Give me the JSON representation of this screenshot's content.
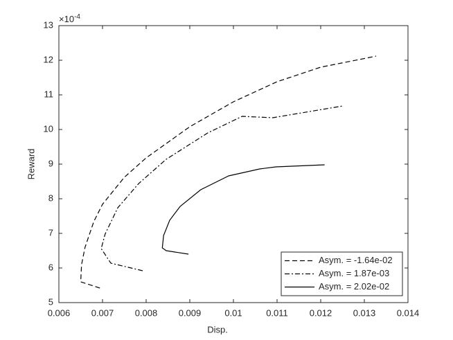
{
  "chart_data": {
    "type": "line",
    "x_label": "Disp.",
    "y_label": "Reward",
    "y_multiplier": {
      "base": "×10",
      "exponent": "-4"
    },
    "xlim": [
      0.006,
      0.014
    ],
    "xticks": [
      0.006,
      0.007,
      0.008,
      0.009,
      0.01,
      0.011,
      0.012,
      0.013,
      0.014
    ],
    "ylim": [
      5,
      13
    ],
    "yticks": [
      5,
      6,
      7,
      8,
      9,
      10,
      11,
      12,
      13
    ],
    "grid": false,
    "legend": "lower right",
    "series": [
      {
        "name": "Asym. = -1.64e-02",
        "color": "#000000",
        "dash": "dashed",
        "x": [
          0.00694,
          0.0065,
          0.00652,
          0.0066,
          0.0068,
          0.007,
          0.0075,
          0.008,
          0.009,
          0.01,
          0.011,
          0.012,
          0.013,
          0.01327
        ],
        "values": [
          5.42,
          5.6,
          6.1,
          6.6,
          7.34,
          7.84,
          8.62,
          9.18,
          10.08,
          10.8,
          11.38,
          11.8,
          12.05,
          12.12
        ]
      },
      {
        "name": "Asym. = 1.87e-03",
        "color": "#000000",
        "dash": "dashdot",
        "x": [
          0.00792,
          0.00719,
          0.00697,
          0.00706,
          0.00735,
          0.00783,
          0.00846,
          0.00941,
          0.0102,
          0.0109,
          0.01251
        ],
        "values": [
          5.92,
          6.14,
          6.56,
          6.98,
          7.74,
          8.44,
          9.14,
          9.9,
          10.38,
          10.34,
          10.68
        ]
      },
      {
        "name": "Asym. = 2.02e-02",
        "color": "#000000",
        "dash": "solid",
        "x": [
          0.00897,
          0.00846,
          0.00837,
          0.0084,
          0.00854,
          0.00878,
          0.00925,
          0.00989,
          0.0106,
          0.01097,
          0.01209
        ],
        "values": [
          6.4,
          6.5,
          6.58,
          6.94,
          7.38,
          7.78,
          8.26,
          8.66,
          8.86,
          8.92,
          8.98
        ]
      }
    ]
  }
}
